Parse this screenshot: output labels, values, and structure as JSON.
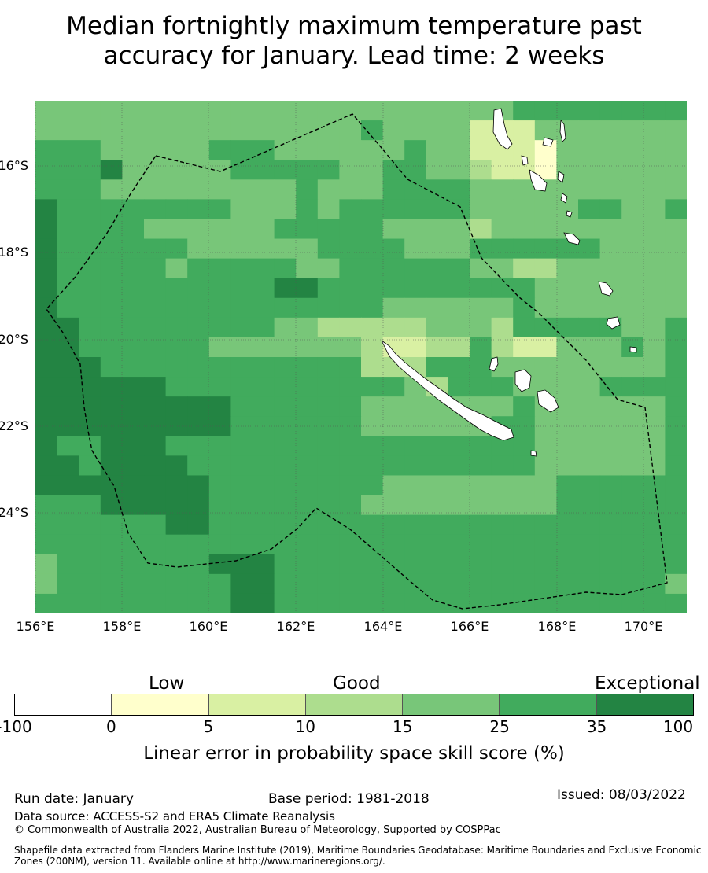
{
  "title_line1": "Median fortnightly maximum temperature past",
  "title_line2": "accuracy for January. Lead time: 2 weeks",
  "map": {
    "lon_labels": [
      "156°E",
      "158°E",
      "160°E",
      "162°E",
      "164°E",
      "166°E",
      "168°E",
      "170°E"
    ],
    "lat_labels": [
      "16°S",
      "18°S",
      "20°S",
      "22°S",
      "24°S"
    ],
    "islands": [
      "new-caledonia",
      "vanuatu",
      "loyalty-islands"
    ]
  },
  "legend": {
    "categories": [
      "Low",
      "Good",
      "Exceptional"
    ],
    "ticks": [
      "-100",
      "0",
      "5",
      "10",
      "15",
      "25",
      "35",
      "100"
    ],
    "colors": [
      "#ffffff",
      "#ffffcc",
      "#d9f0a3",
      "#addd8e",
      "#78c679",
      "#41ab5d",
      "#238443"
    ],
    "title": "Linear error in probability space skill score (%)"
  },
  "footer": {
    "run_date": "Run date: January",
    "base_period": "Base period: 1981-2018",
    "issued": "Issued: 08/03/2022",
    "data_source": "Data source: ACCESS-S2 and ERA5 Climate Reanalysis",
    "copyright": "© Commonwealth of Australia 2022, Australian Bureau of Meteorology, Supported by COSPPac",
    "shapefile_line1": "Shapefile data extracted from Flanders Marine Institute (2019), Maritime Boundaries Geodatabase: Maritime Boundaries and Exclusive Economic",
    "shapefile_line2": "Zones (200NM), version 11. Available online at http://www.marineregions.org/."
  }
}
